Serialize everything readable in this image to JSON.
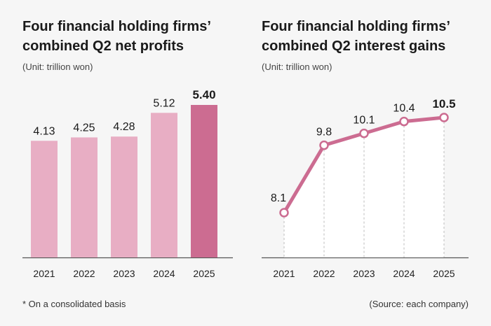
{
  "colors": {
    "bar": "#e8aec4",
    "bar_highlight": "#cc6c91",
    "line": "#cc6c91",
    "axis": "#555555",
    "grid": "#bdbdbd",
    "background": "#f6f6f6"
  },
  "chart_data": [
    {
      "type": "bar",
      "title": "Four financial holding firms’\ncombined Q2 net profits",
      "subtitle": "(Unit: trillion won)",
      "categories": [
        "2021",
        "2022",
        "2023",
        "2024",
        "2025"
      ],
      "values": [
        4.13,
        4.25,
        4.28,
        5.12,
        5.4
      ],
      "value_labels": [
        "4.13",
        "4.25",
        "4.28",
        "5.12",
        "5.40"
      ],
      "highlight_index": 4,
      "xlabel": "",
      "ylabel": ""
    },
    {
      "type": "line",
      "title": "Four financial holding firms’\ncombined Q2 interest gains",
      "subtitle": "(Unit: trillion won)",
      "categories": [
        "2021",
        "2022",
        "2023",
        "2024",
        "2025"
      ],
      "values": [
        8.1,
        9.8,
        10.1,
        10.4,
        10.5
      ],
      "value_labels": [
        "8.1",
        "9.8",
        "10.1",
        "10.4",
        "10.5"
      ],
      "highlight_index": 4,
      "xlabel": "",
      "ylabel": ""
    }
  ],
  "footnote": "* On a consolidated basis",
  "source": "(Source: each company)"
}
